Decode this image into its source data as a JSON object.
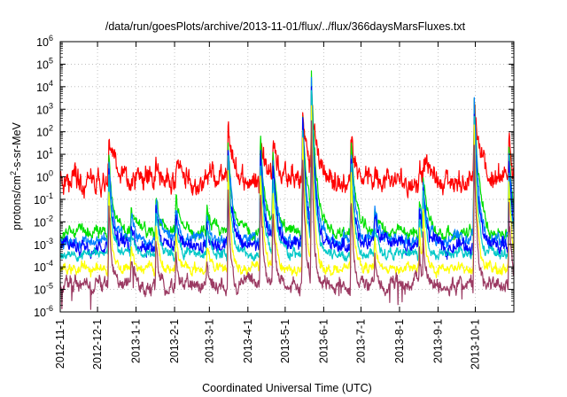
{
  "chart_data": {
    "type": "line",
    "title": "/data/run/goesPlots/archive/2013-11-01/flux/../flux/366daysMarsFluxes.txt",
    "xlabel": "Coordinated Universal Time (UTC)",
    "ylabel": "protons/cm2-s-sr-MeV",
    "ylabel_parts": {
      "base": "protons/cm",
      "sup": "2",
      "rest": "-s-sr-MeV"
    },
    "y_scale": "log",
    "ylim": [
      1e-06,
      1000000.0
    ],
    "y_ticks": [
      {
        "base": "10",
        "exp": "-6"
      },
      {
        "base": "10",
        "exp": "-5"
      },
      {
        "base": "10",
        "exp": "-4"
      },
      {
        "base": "10",
        "exp": "-3"
      },
      {
        "base": "10",
        "exp": "-2"
      },
      {
        "base": "10",
        "exp": "-1"
      },
      {
        "base": "10",
        "exp": "0"
      },
      {
        "base": "10",
        "exp": "1"
      },
      {
        "base": "10",
        "exp": "2"
      },
      {
        "base": "10",
        "exp": "3"
      },
      {
        "base": "10",
        "exp": "4"
      },
      {
        "base": "10",
        "exp": "5"
      },
      {
        "base": "10",
        "exp": "6"
      }
    ],
    "xlim": [
      "2012-11-01",
      "2013-11-01"
    ],
    "x_ticks": [
      "2012-11-1",
      "2012-12-1",
      "2013-1-1",
      "2013-2-1",
      "2013-3-1",
      "2013-4-1",
      "2013-5-1",
      "2013-6-1",
      "2013-7-1",
      "2013-8-1",
      "2013-9-1",
      "2013-10-1"
    ],
    "grid": true,
    "legend": "none",
    "events": [
      {
        "date": "2012-12-10",
        "strength": 0.85
      },
      {
        "date": "2012-12-28",
        "strength": 0.25
      },
      {
        "date": "2013-01-17",
        "strength": 0.45
      },
      {
        "date": "2013-02-02",
        "strength": 0.35
      },
      {
        "date": "2013-02-27",
        "strength": 0.25
      },
      {
        "date": "2013-03-16",
        "strength": 1.0
      },
      {
        "date": "2013-04-11",
        "strength": 1.05
      },
      {
        "date": "2013-04-21",
        "strength": 0.85
      },
      {
        "date": "2013-05-15",
        "strength": 1.3
      },
      {
        "date": "2013-05-22",
        "strength": 1.7
      },
      {
        "date": "2013-06-23",
        "strength": 1.0
      },
      {
        "date": "2013-07-12",
        "strength": 0.3
      },
      {
        "date": "2013-08-17",
        "strength": 0.35
      },
      {
        "date": "2013-08-20",
        "strength": 0.6
      },
      {
        "date": "2013-09-30",
        "strength": 1.5
      },
      {
        "date": "2013-10-28",
        "strength": 0.85
      }
    ],
    "series": [
      {
        "color": "#ff0000",
        "baseline": 0.6,
        "noise": 0.55,
        "spike": 2.2,
        "spread": 5
      },
      {
        "color": "#00e000",
        "baseline": 0.003,
        "noise": 0.3,
        "spike": 4.2,
        "spread": 4
      },
      {
        "color": "#0080ff",
        "baseline": 0.0015,
        "noise": 0.3,
        "spike": 4.3,
        "spread": 3.5
      },
      {
        "color": "#0000ff",
        "baseline": 0.0009,
        "noise": 0.35,
        "spike": 4.3,
        "spread": 3
      },
      {
        "color": "#00c8c8",
        "baseline": 0.00035,
        "noise": 0.25,
        "spike": 4.4,
        "spread": 3
      },
      {
        "color": "#ffff00",
        "baseline": 8e-05,
        "noise": 0.25,
        "spike": 4.5,
        "spread": 2.5
      },
      {
        "color": "#9b3a62",
        "baseline": 1.5e-05,
        "noise": 0.35,
        "spike": 4.5,
        "spread": 2.2
      }
    ]
  }
}
